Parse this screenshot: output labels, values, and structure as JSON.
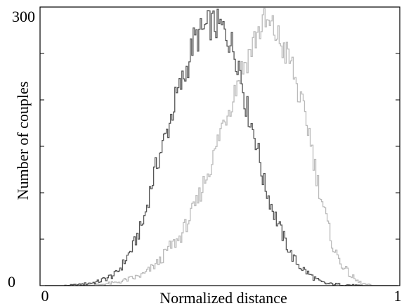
{
  "chart_data": {
    "type": "line",
    "title": "",
    "xlabel": "Normalized distance",
    "ylabel": "Number of couples",
    "xlim": [
      0,
      1
    ],
    "ylim": [
      0,
      300
    ],
    "x_tick_labels": [
      "0",
      "1"
    ],
    "y_tick_labels": [
      "0",
      "300"
    ],
    "y_ticks": [
      0,
      50,
      100,
      150,
      200,
      250,
      300
    ],
    "grid": false,
    "legend": "none",
    "render": "step histogram",
    "series": [
      {
        "color": "#555555",
        "x": [
          0.0,
          0.05,
          0.1,
          0.15,
          0.2,
          0.22,
          0.25,
          0.28,
          0.3,
          0.32,
          0.35,
          0.37,
          0.4,
          0.42,
          0.45,
          0.47,
          0.5,
          0.52,
          0.55,
          0.57,
          0.6,
          0.62,
          0.65,
          0.67,
          0.7,
          0.72,
          0.75,
          0.78,
          0.8,
          0.85,
          0.9,
          0.95,
          1.0
        ],
        "y": [
          0,
          0,
          1,
          4,
          12,
          22,
          42,
          70,
          105,
          135,
          170,
          200,
          230,
          262,
          275,
          282,
          278,
          268,
          240,
          195,
          155,
          112,
          78,
          58,
          32,
          22,
          12,
          4,
          2,
          1,
          0,
          0,
          0
        ]
      },
      {
        "color": "#bbbbbb",
        "x": [
          0.0,
          0.05,
          0.1,
          0.15,
          0.2,
          0.25,
          0.28,
          0.3,
          0.33,
          0.35,
          0.38,
          0.4,
          0.43,
          0.45,
          0.48,
          0.5,
          0.53,
          0.55,
          0.58,
          0.6,
          0.62,
          0.65,
          0.67,
          0.7,
          0.72,
          0.75,
          0.77,
          0.8,
          0.82,
          0.85,
          0.88,
          0.9,
          0.93,
          0.95,
          1.0
        ],
        "y": [
          0,
          0,
          0,
          1,
          3,
          8,
          12,
          18,
          28,
          40,
          50,
          65,
          88,
          110,
          140,
          170,
          200,
          225,
          250,
          270,
          283,
          275,
          260,
          238,
          205,
          165,
          118,
          68,
          38,
          18,
          6,
          2,
          0,
          0,
          0
        ]
      }
    ]
  }
}
